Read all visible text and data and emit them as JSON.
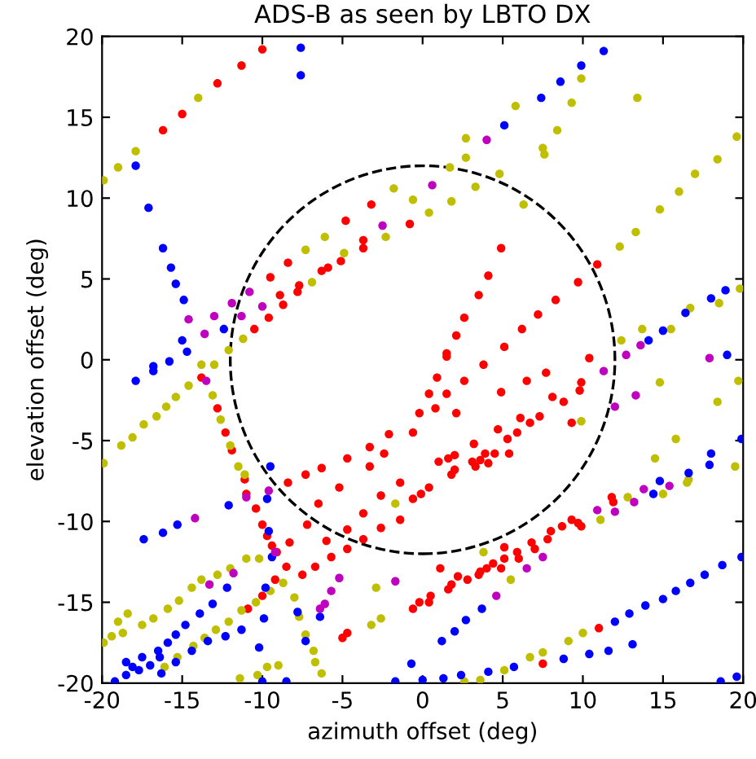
{
  "chart_data": {
    "type": "scatter",
    "title": "ADS-B as seen by LBTO DX",
    "xlabel": "azimuth offset (deg)",
    "ylabel": "elevation offset (deg)",
    "xlim": [
      -20,
      20
    ],
    "ylim": [
      -20,
      20
    ],
    "xticks": [
      -20,
      -15,
      -10,
      -5,
      0,
      5,
      10,
      15,
      20
    ],
    "yticks": [
      -20,
      -15,
      -10,
      -5,
      0,
      5,
      10,
      15,
      20
    ],
    "grid": false,
    "marker": "circle",
    "series": [
      {
        "color": "#ff0000",
        "x": [
          -10.0,
          -11.3,
          -12.8,
          -15.0,
          -16.2,
          -4.8,
          -3.2,
          -0.8,
          -3.7,
          -3.7,
          -5.1,
          -5.9,
          -6.3,
          -7.7,
          -7.8,
          -8.4,
          -9.5,
          -8.9,
          -8.7,
          -9.6,
          -10.5,
          4.9,
          4.1,
          3.5,
          2.6,
          2.1,
          10.9,
          9.7,
          8.3,
          7.2,
          6.2,
          5.1,
          1.5,
          -13.8,
          -12.8,
          -12.3,
          -11.9,
          -11.1,
          -11.0,
          -10.4,
          -10.0,
          -9.7,
          -9.4,
          -9.1,
          -8.4,
          -7.3,
          -6.3,
          -4.7,
          -3.3,
          -2.1,
          -0.6,
          -0.2,
          -3.3,
          -2.4,
          -1.4,
          -2.6,
          -3.7,
          -4.7,
          -6.0,
          -7.2,
          -6.5,
          -5.2,
          -8.3,
          -8.5,
          -7.5,
          -6.7,
          -5.7,
          -4.7,
          -3.7,
          -2.6,
          -1.4,
          -0.6,
          -9.2,
          -10.0,
          -10.9,
          -4.7,
          -5.0,
          -0.6,
          -0.2,
          1.5,
          3.8,
          7.7,
          10.4,
          0.9,
          2.6,
          4.9,
          6.5,
          9.9,
          9.8,
          0.4,
          1.5,
          0.8,
          2.1,
          8.1,
          8.8,
          7.3,
          6.1,
          6.7,
          4.7,
          9.3,
          3.2,
          5.3,
          5.9,
          4.5,
          3.9,
          5.4,
          1.0,
          1.6,
          2.0,
          3.1,
          3.6,
          3.3,
          4.1,
          2.0,
          1.8,
          0.4,
          -0.1,
          9.3,
          9.7,
          9.9,
          8.7,
          8.0,
          7.8,
          6.8,
          7.0,
          5.9,
          6.0,
          5.1,
          5.1,
          4.4,
          4.9,
          4.0,
          3.6,
          3.5,
          2.2,
          2.8,
          1.1,
          1.8,
          1.6,
          0.5,
          0.4,
          11.0,
          7.5,
          11.8,
          11.9
        ],
        "values": [
          19.2,
          18.2,
          17.1,
          15.2,
          14.2,
          8.6,
          9.6,
          8.4,
          7.4,
          6.9,
          6.1,
          5.7,
          5.5,
          4.6,
          4.2,
          6.0,
          5.1,
          4.0,
          3.4,
          2.6,
          1.9,
          6.9,
          5.2,
          4.0,
          2.6,
          1.5,
          5.9,
          4.8,
          3.7,
          2.8,
          1.9,
          0.8,
          0.4,
          -1.1,
          -3.0,
          -4.5,
          -5.6,
          -7.4,
          -8.3,
          -9.2,
          -10.2,
          -10.9,
          -11.5,
          -11.9,
          -7.6,
          -7.1,
          -6.7,
          -6.1,
          -5.4,
          -4.6,
          -4.5,
          -3.3,
          -6.6,
          -5.8,
          -7.6,
          -8.4,
          -9.5,
          -10.5,
          -11.2,
          -10.2,
          -8.9,
          -7.9,
          -11.3,
          -12.8,
          -13.3,
          -12.8,
          -12.2,
          -11.7,
          -11.1,
          -10.4,
          -9.9,
          -8.6,
          -13.6,
          -14.6,
          -15.4,
          -16.9,
          -17.2,
          -15.4,
          -15.0,
          0.2,
          -0.3,
          -0.8,
          0.1,
          -1.1,
          -1.3,
          -2.0,
          -1.3,
          -1.4,
          -1.9,
          -2.1,
          -2.1,
          -3.0,
          -3.3,
          -2.3,
          -2.6,
          -3.5,
          -3.6,
          -3.9,
          -4.3,
          -3.9,
          -5.2,
          -4.9,
          -4.5,
          -5.8,
          -5.8,
          -5.8,
          -6.3,
          -6.1,
          -5.9,
          -6.3,
          -6.2,
          -6.6,
          -6.4,
          -6.8,
          -7.1,
          -7.9,
          -8.3,
          -9.9,
          -10.1,
          -10.3,
          -10.3,
          -10.6,
          -11.1,
          -11.3,
          -11.7,
          -11.9,
          -12.3,
          -11.6,
          -12.3,
          -12.6,
          -12.9,
          -12.9,
          -13.1,
          -13.3,
          -13.4,
          -13.6,
          -12.9,
          -13.9,
          -14.2,
          -14.6,
          -15.0,
          -16.6,
          -18.8,
          -8.5,
          -8.8
        ]
      },
      {
        "color": "#bfbf00",
        "x": [
          -14.0,
          -17.9,
          -19.0,
          -19.9,
          -1.8,
          -0.6,
          -2.3,
          -4.9,
          -6.1,
          -7.3,
          -6.9,
          -11.2,
          -12.1,
          9.9,
          5.8,
          9.3,
          13.4,
          8.4,
          2.7,
          2.7,
          7.5,
          7.6,
          4.8,
          1.7,
          3.3,
          1.8,
          0.4,
          6.3,
          19.6,
          18.4,
          17.0,
          16.0,
          14.8,
          13.3,
          12.3,
          13.7,
          12.4,
          16.7,
          15.5,
          18.5,
          19.8,
          -19.9,
          -18.8,
          -18.1,
          -17.4,
          -16.6,
          -16.0,
          -15.4,
          -14.6,
          -13.8,
          -13.0,
          -13.1,
          -12.6,
          -12.0,
          -11.5,
          -11.1,
          -19.9,
          -19.4,
          -18.7,
          -19.0,
          -18.4,
          -17.5,
          -16.8,
          -15.9,
          -15.2,
          -14.4,
          -13.8,
          -12.8,
          -12.0,
          -11.0,
          -10.2,
          -16.1,
          -15.3,
          -14.3,
          -13.6,
          -12.9,
          -12.1,
          -11.3,
          -10.4,
          -9.5,
          -8.7,
          -8.0,
          -7.7,
          -7.3,
          -6.8,
          -6.7,
          -6.3,
          -9.0,
          -9.7,
          -10.3,
          -11.4,
          -2.9,
          -2.6,
          -3.2,
          -1.7,
          14.8,
          18.4,
          19.7,
          9.9,
          11.1,
          12.8,
          14.5,
          15.8,
          16.5,
          16.6,
          15.0,
          19.5,
          3.8,
          5.5,
          9.1,
          10.0,
          7.5,
          6.7,
          5.1,
          3.6,
          2.6
        ],
        "values": [
          16.2,
          12.9,
          11.9,
          11.1,
          10.6,
          9.9,
          7.6,
          6.6,
          7.6,
          6.8,
          4.8,
          1.3,
          0.6,
          17.4,
          15.7,
          15.9,
          16.2,
          14.2,
          13.7,
          12.5,
          13.1,
          12.7,
          11.5,
          11.9,
          10.7,
          9.8,
          9.1,
          9.6,
          13.8,
          12.4,
          11.5,
          10.4,
          9.3,
          7.9,
          7.0,
          1.9,
          1.2,
          3.2,
          1.9,
          3.5,
          4.4,
          -6.4,
          -5.3,
          -4.8,
          -4.0,
          -3.5,
          -2.9,
          -2.3,
          -1.6,
          -0.3,
          -0.3,
          -2.2,
          -3.7,
          -5.3,
          -6.6,
          -7.1,
          -17.5,
          -17.1,
          -16.9,
          -16.2,
          -15.7,
          -16.4,
          -16.0,
          -15.4,
          -14.9,
          -14.1,
          -13.6,
          -13.3,
          -12.9,
          -12.3,
          -12.3,
          -19.0,
          -18.4,
          -17.7,
          -17.2,
          -16.7,
          -16.2,
          -15.5,
          -15.0,
          -14.3,
          -13.8,
          -14.7,
          -15.9,
          -17.0,
          -18.0,
          -18.7,
          -19.4,
          -18.9,
          -19.0,
          -19.5,
          -19.7,
          -14.1,
          -16.0,
          -16.4,
          -8.9,
          -1.4,
          -2.6,
          -1.3,
          -3.8,
          -9.9,
          -8.5,
          -6.1,
          -4.9,
          -7.6,
          -7.4,
          -8.3,
          -6.6,
          -11.9,
          -13.6,
          -17.4,
          -16.9,
          -18.1,
          -18.4,
          -19.2,
          -19.8,
          -19.9
        ]
      },
      {
        "color": "#0000ff",
        "x": [
          -7.6,
          -7.6,
          -17.9,
          -17.1,
          -16.2,
          -15.7,
          -15.4,
          -14.9,
          -15.0,
          -14.7,
          -12.4,
          11.3,
          9.9,
          8.6,
          7.4,
          5.1,
          18.9,
          18.0,
          16.4,
          15.0,
          14.1,
          -15.8,
          -16.8,
          -16.8,
          -17.9,
          -17.4,
          -16.2,
          -15.3,
          -12.1,
          -9.5,
          -9.7,
          -9.6,
          -9.4,
          -9.8,
          -9.9,
          -10.2,
          -8.5,
          -7.8,
          -7.3,
          -6.4,
          -13.1,
          -12.2,
          -13.9,
          -14.8,
          -15.4,
          -15.9,
          -16.5,
          -17.5,
          -18.1,
          -18.5,
          -19.2,
          -16.4,
          -17.0,
          -17.7,
          -11.3,
          -12.3,
          -13.4,
          -14.4,
          -15.4,
          -16.3,
          -18.5,
          -10.0,
          -1.7,
          -0.7,
          0.0,
          19.0,
          19.9,
          18.0,
          17.9,
          16.6,
          14.8,
          14.4,
          19.9,
          18.7,
          17.6,
          16.7,
          15.8,
          15.0,
          13.9,
          12.9,
          12.0,
          13.1,
          11.6,
          10.4,
          8.8,
          5.7,
          4.1,
          2.4,
          1.3,
          3.7,
          2.7,
          2.0,
          1.2,
          18.6,
          19.6
        ],
        "values": [
          19.3,
          17.6,
          12.0,
          9.4,
          6.9,
          5.7,
          4.7,
          3.7,
          1.2,
          0.5,
          1.9,
          19.1,
          18.2,
          17.2,
          16.2,
          14.5,
          4.3,
          3.8,
          2.9,
          1.8,
          1.2,
          -0.1,
          -0.4,
          -0.7,
          -1.3,
          -11.1,
          -10.7,
          -10.2,
          -9.0,
          -6.6,
          -8.6,
          -10.6,
          -12.2,
          -14.1,
          -16.0,
          -17.8,
          -19.9,
          -15.6,
          -17.4,
          -15.9,
          -15.1,
          -14.1,
          -15.7,
          -16.4,
          -17.0,
          -17.5,
          -18.0,
          -18.4,
          -19.0,
          -19.5,
          -19.9,
          -18.4,
          -18.9,
          -19.2,
          -16.7,
          -17.1,
          -17.4,
          -18.0,
          -18.7,
          -19.4,
          -18.7,
          -19.9,
          -19.9,
          -18.8,
          -19.8,
          0.3,
          -4.9,
          -5.8,
          -6.5,
          -7.0,
          -7.5,
          -8.3,
          -12.2,
          -12.7,
          -13.3,
          -13.8,
          -14.3,
          -14.8,
          -15.2,
          -15.7,
          -16.2,
          -17.6,
          -18.0,
          -18.2,
          -18.5,
          -19.0,
          -19.3,
          -19.5,
          -19.7,
          -15.4,
          -16.1,
          -16.8,
          -17.4,
          -19.9,
          -19.6
        ]
      },
      {
        "color": "#bf00bf",
        "x": [
          -14.6,
          -13.6,
          -13.0,
          -11.9,
          -10.8,
          -11.3,
          -10.0,
          -2.5,
          4.0,
          0.6,
          13.6,
          12.7,
          -13.5,
          -11.0,
          -9.6,
          -14.2,
          -9.2,
          -11.8,
          -13.3,
          -5.2,
          -5.7,
          -6.1,
          -6.4,
          -1.7,
          17.9,
          11.3,
          12.0,
          13.3,
          13.8,
          15.4,
          13.2,
          12.0,
          10.9,
          7.5,
          6.5,
          4.6
        ],
        "values": [
          2.5,
          1.6,
          2.7,
          3.5,
          4.2,
          2.7,
          3.3,
          8.3,
          13.6,
          10.8,
          0.9,
          0.3,
          -1.3,
          -8.5,
          -8.1,
          -9.8,
          -11.9,
          -13.2,
          -13.9,
          -13.5,
          -14.3,
          -15.1,
          -15.4,
          -13.7,
          0.1,
          -0.7,
          -2.9,
          -2.2,
          -8.0,
          -7.8,
          -8.8,
          -9.4,
          -9.3,
          -12.2,
          -12.9,
          -14.6
        ]
      }
    ]
  }
}
